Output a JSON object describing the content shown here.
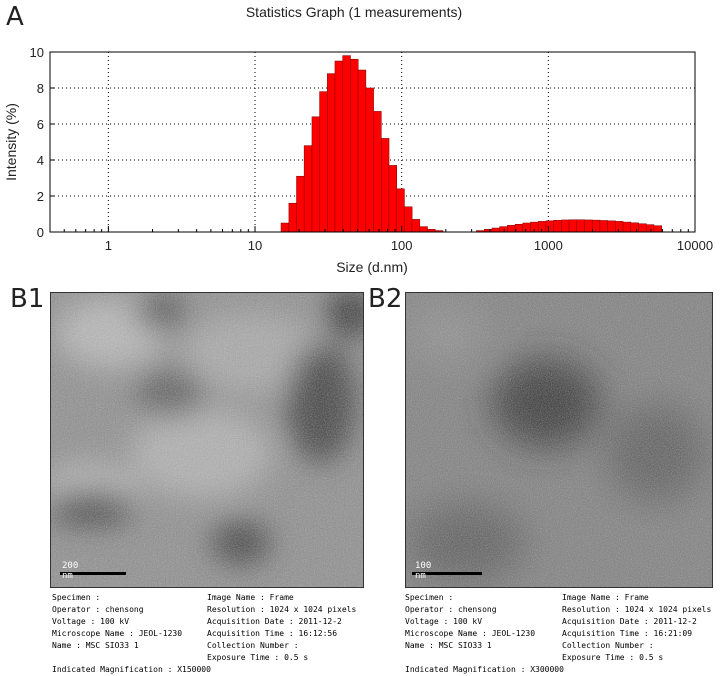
{
  "panel_a_label": "A",
  "panel_b1_label": "B1",
  "panel_b2_label": "B2",
  "chart_data": {
    "type": "bar",
    "title": "Statistics Graph (1 measurements)",
    "xlabel": "Size (d.nm)",
    "ylabel": "Intensity (%)",
    "x_scale": "log",
    "xlim": [
      0.4,
      10000
    ],
    "ylim": [
      0,
      10
    ],
    "x_tick_labels": [
      "1",
      "10",
      "100",
      "1000",
      "10000"
    ],
    "y_tick_labels": [
      "0",
      "2",
      "4",
      "6",
      "8",
      "10"
    ],
    "grid": true,
    "bar_color": "#ff0000",
    "bars": [
      {
        "x": 16.0,
        "y": 0.5
      },
      {
        "x": 18.1,
        "y": 1.6
      },
      {
        "x": 20.4,
        "y": 3.1
      },
      {
        "x": 23.0,
        "y": 4.8
      },
      {
        "x": 26.0,
        "y": 6.4
      },
      {
        "x": 29.3,
        "y": 7.8
      },
      {
        "x": 33.1,
        "y": 8.8
      },
      {
        "x": 37.3,
        "y": 9.5
      },
      {
        "x": 42.1,
        "y": 9.8
      },
      {
        "x": 47.5,
        "y": 9.6
      },
      {
        "x": 53.6,
        "y": 9.0
      },
      {
        "x": 60.5,
        "y": 8.0
      },
      {
        "x": 68.3,
        "y": 6.7
      },
      {
        "x": 77.1,
        "y": 5.2
      },
      {
        "x": 87.0,
        "y": 3.7
      },
      {
        "x": 98.2,
        "y": 2.4
      },
      {
        "x": 110.8,
        "y": 1.4
      },
      {
        "x": 125.0,
        "y": 0.7
      },
      {
        "x": 141.1,
        "y": 0.3
      },
      {
        "x": 159.3,
        "y": 0.15
      },
      {
        "x": 179.8,
        "y": 0.08
      },
      {
        "x": 344,
        "y": 0.08
      },
      {
        "x": 389,
        "y": 0.15
      },
      {
        "x": 439,
        "y": 0.22
      },
      {
        "x": 495,
        "y": 0.3
      },
      {
        "x": 559,
        "y": 0.37
      },
      {
        "x": 631,
        "y": 0.43
      },
      {
        "x": 712,
        "y": 0.5
      },
      {
        "x": 804,
        "y": 0.55
      },
      {
        "x": 907,
        "y": 0.59
      },
      {
        "x": 1024,
        "y": 0.62
      },
      {
        "x": 1156,
        "y": 0.65
      },
      {
        "x": 1304,
        "y": 0.67
      },
      {
        "x": 1472,
        "y": 0.68
      },
      {
        "x": 1662,
        "y": 0.68
      },
      {
        "x": 1875,
        "y": 0.67
      },
      {
        "x": 2117,
        "y": 0.66
      },
      {
        "x": 2389,
        "y": 0.64
      },
      {
        "x": 2697,
        "y": 0.62
      },
      {
        "x": 3043,
        "y": 0.59
      },
      {
        "x": 3435,
        "y": 0.55
      },
      {
        "x": 3877,
        "y": 0.51
      },
      {
        "x": 4376,
        "y": 0.46
      },
      {
        "x": 4939,
        "y": 0.41
      },
      {
        "x": 5575,
        "y": 0.35
      }
    ]
  },
  "micrograph_b1": {
    "scale_bar_label": "200 nm",
    "meta_left": [
      "Specimen :",
      "Operator : chensong",
      "Voltage : 100 kV",
      "Microscope Name : JEOL-1230",
      "Name : MSC SIO33 1",
      "",
      "Indicated Magnification : X150000"
    ],
    "meta_right": [
      "Image Name : Frame",
      "Resolution : 1024 x 1024 pixels",
      "Acquisition Date : 2011-12-2",
      "Acquisition Time : 16:12:56",
      "Collection Number :",
      "Exposure Time : 0.5 s"
    ]
  },
  "micrograph_b2": {
    "scale_bar_label": "100 nm",
    "meta_left": [
      "Specimen :",
      "Operator : chensong",
      "Voltage : 100 kV",
      "Microscope Name : JEOL-1230",
      "Name : MSC SIO33 1",
      "",
      "Indicated Magnification : X300000"
    ],
    "meta_right": [
      "Image Name : Frame",
      "Resolution : 1024 x 1024 pixels",
      "Acquisition Date : 2011-12-2",
      "Acquisition Time : 16:21:09",
      "Collection Number :",
      "Exposure Time : 0.5 s"
    ]
  }
}
